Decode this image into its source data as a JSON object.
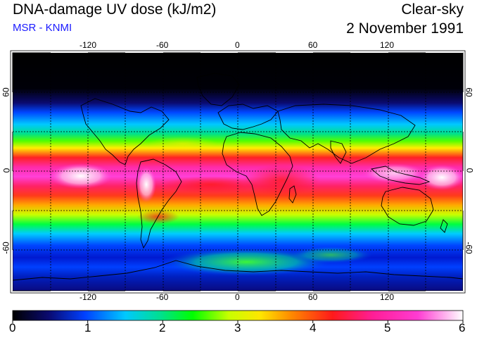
{
  "header": {
    "title": "DNA-damage UV dose (kJ/m2)",
    "subtitle": "MSR - KNMI",
    "sky_condition": "Clear-sky",
    "date": "2 November 1991"
  },
  "map": {
    "longitude_labels": [
      "-120",
      "-60",
      "0",
      "60",
      "120"
    ],
    "latitude_labels": [
      "60",
      "0",
      "-60"
    ]
  },
  "colorbar": {
    "labels": [
      "0",
      "1",
      "2",
      "3",
      "4",
      "5",
      "6"
    ],
    "colors": [
      "#000000",
      "#0a0a70",
      "#0040ff",
      "#00c8ff",
      "#00e08c",
      "#00ff00",
      "#c8ff00",
      "#ffe600",
      "#ff8800",
      "#ff1a1a",
      "#ff1e96",
      "#ff3cd2",
      "#ffffff"
    ]
  }
}
